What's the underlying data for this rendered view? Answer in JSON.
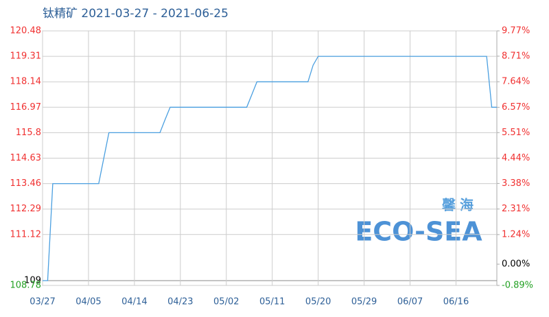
{
  "chart_data": {
    "type": "line",
    "title": "钛精矿 2021-03-27 - 2021-06-25",
    "watermark": "馨海",
    "watermark_logo": "ECO-SEA",
    "categories": [
      "03/27",
      null,
      null,
      null,
      null,
      null,
      null,
      null,
      null,
      "04/05",
      null,
      null,
      null,
      null,
      null,
      null,
      null,
      null,
      "04/14",
      null,
      null,
      null,
      null,
      null,
      null,
      null,
      null,
      "04/23",
      null,
      null,
      null,
      null,
      null,
      null,
      null,
      null,
      "05/02",
      null,
      null,
      null,
      null,
      null,
      null,
      null,
      null,
      "05/11",
      null,
      null,
      null,
      null,
      null,
      null,
      null,
      null,
      "05/20",
      null,
      null,
      null,
      null,
      null,
      null,
      null,
      null,
      "05/29",
      null,
      null,
      null,
      null,
      null,
      null,
      null,
      null,
      "06/07",
      null,
      null,
      null,
      null,
      null,
      null,
      null,
      null,
      "06/16",
      null,
      null,
      null,
      null,
      null,
      null,
      null,
      null
    ],
    "series": [
      {
        "color": "#4a9fe0",
        "values": [
          109,
          109,
          113.46,
          113.46,
          113.46,
          113.46,
          113.46,
          113.46,
          113.46,
          113.46,
          113.46,
          113.46,
          114.63,
          115.8,
          115.8,
          115.8,
          115.8,
          115.8,
          115.8,
          115.8,
          115.8,
          115.8,
          115.8,
          115.8,
          116.4,
          116.97,
          116.97,
          116.97,
          116.97,
          116.97,
          116.97,
          116.97,
          116.97,
          116.97,
          116.97,
          116.97,
          116.97,
          116.97,
          116.97,
          116.97,
          116.97,
          117.55,
          118.14,
          118.14,
          118.14,
          118.14,
          118.14,
          118.14,
          118.14,
          118.14,
          118.14,
          118.14,
          118.14,
          118.9,
          119.31,
          119.31,
          119.31,
          119.31,
          119.31,
          119.31,
          119.31,
          119.31,
          119.31,
          119.31,
          119.31,
          119.31,
          119.31,
          119.31,
          119.31,
          119.31,
          119.31,
          119.31,
          119.31,
          119.31,
          119.31,
          119.31,
          119.31,
          119.31,
          119.31,
          119.31,
          119.31,
          119.31,
          119.31,
          119.31,
          119.31,
          119.31,
          119.31,
          119.31,
          116.97,
          116.97
        ]
      }
    ],
    "ylim": [
      108.78,
      120.48
    ],
    "yticks": [
      120.48,
      119.31,
      118.14,
      116.97,
      115.8,
      114.63,
      113.46,
      112.29,
      111.12,
      109,
      108.78
    ],
    "baseline": 109,
    "y2lim": [
      -0.89,
      9.77
    ],
    "y2ticks": [
      {
        "value": 9.77,
        "label": "9.77%"
      },
      {
        "value": 8.71,
        "label": "8.71%"
      },
      {
        "value": 7.64,
        "label": "7.64%"
      },
      {
        "value": 6.57,
        "label": "6.57%"
      },
      {
        "value": 5.51,
        "label": "5.51%"
      },
      {
        "value": 4.44,
        "label": "4.44%"
      },
      {
        "value": 3.38,
        "label": "3.38%"
      },
      {
        "value": 2.31,
        "label": "2.31%"
      },
      {
        "value": 1.24,
        "label": "1.24%"
      },
      {
        "value": 0,
        "label": "0.00%"
      },
      {
        "value": -0.89,
        "label": "-0.89%"
      }
    ],
    "up_color": "#f03030",
    "down_color": "#22a022",
    "flat_color": "#000000",
    "grid": true
  }
}
